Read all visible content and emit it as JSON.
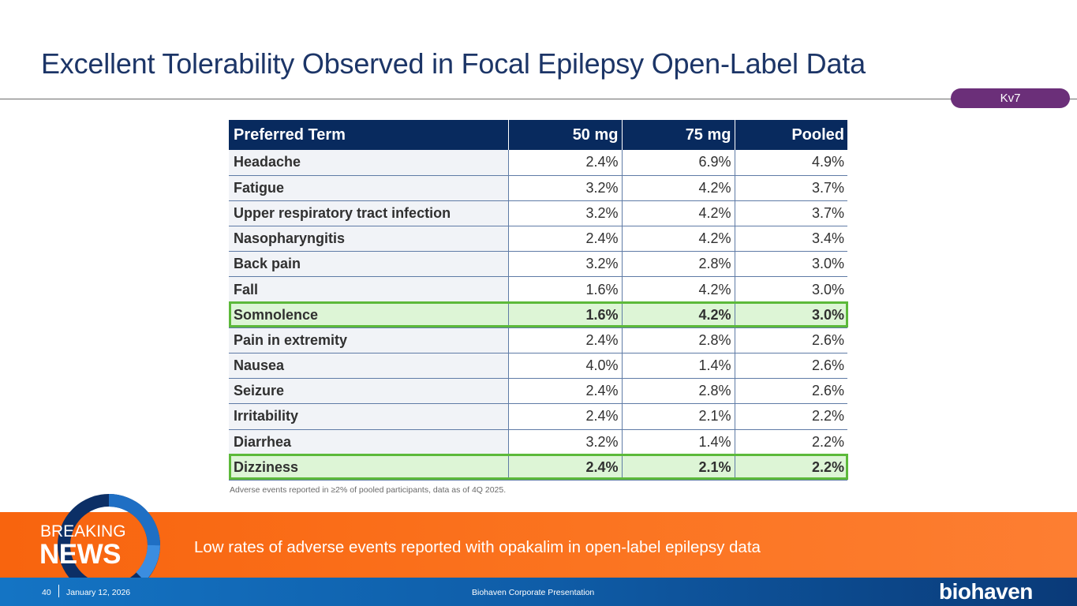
{
  "slide": {
    "title": "Excellent Tolerability Observed in Focal Epilepsy Open-Label Data",
    "tag": "Kv7"
  },
  "table": {
    "headers": [
      "Preferred Term",
      "50 mg",
      "75 mg",
      "Pooled"
    ],
    "rows": [
      [
        "Headache",
        "2.4%",
        "6.9%",
        "4.9%"
      ],
      [
        "Fatigue",
        "3.2%",
        "4.2%",
        "3.7%"
      ],
      [
        "Upper respiratory tract infection",
        "3.2%",
        "4.2%",
        "3.7%"
      ],
      [
        "Nasopharyngitis",
        "2.4%",
        "4.2%",
        "3.4%"
      ],
      [
        "Back pain",
        "3.2%",
        "2.8%",
        "3.0%"
      ],
      [
        "Fall",
        "1.6%",
        "4.2%",
        "3.0%"
      ],
      [
        "Somnolence",
        "1.6%",
        "4.2%",
        "3.0%"
      ],
      [
        "Pain in extremity",
        "2.4%",
        "2.8%",
        "2.6%"
      ],
      [
        "Nausea",
        "4.0%",
        "1.4%",
        "2.6%"
      ],
      [
        "Seizure",
        "2.4%",
        "2.8%",
        "2.6%"
      ],
      [
        "Irritability",
        "2.4%",
        "2.1%",
        "2.2%"
      ],
      [
        "Diarrhea",
        "3.2%",
        "1.4%",
        "2.2%"
      ],
      [
        "Dizziness",
        "2.4%",
        "2.1%",
        "2.2%"
      ]
    ],
    "highlighted_terms": [
      "Somnolence",
      "Dizziness"
    ],
    "highlight_color": "#5cb93a",
    "footnote": "Adverse events reported in ≥2% of pooled participants, data as of 4Q 2025."
  },
  "banner": {
    "label_top": "BREAKING",
    "label_bottom": "NEWS",
    "message": "Low rates of adverse events reported with opakalim in open-label epilepsy data"
  },
  "footer": {
    "page_number": "40",
    "date": "January 12, 2026",
    "center_text": "Biohaven Corporate Presentation",
    "logo_text": "biohaven"
  },
  "colors": {
    "title": "#1c3567",
    "header_bg": "#082a5e",
    "tag_bg": "#6b2f79",
    "banner_orange": "#f8640e",
    "footer_blue": "#0f5da8"
  }
}
